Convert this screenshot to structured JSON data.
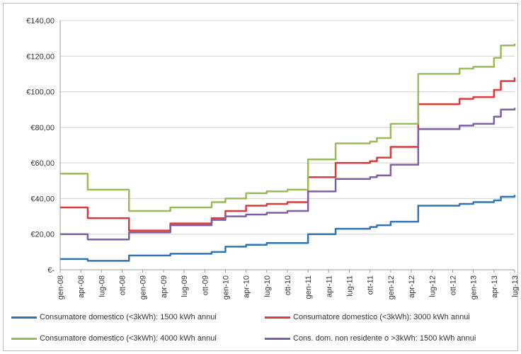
{
  "chart_data": {
    "type": "line",
    "title": "",
    "xlabel": "",
    "ylabel": "",
    "ylim": [
      0,
      140
    ],
    "y_ticks": [
      0,
      20,
      40,
      60,
      80,
      100,
      120,
      140
    ],
    "y_tick_labels": [
      "€-",
      "€20,00",
      "€40,00",
      "€60,00",
      "€80,00",
      "€100,00",
      "€120,00",
      "€140,00"
    ],
    "grid": true,
    "legend_position": "bottom",
    "x_tick_labels": [
      "gen-08",
      "apr-08",
      "lug-08",
      "ott-08",
      "gen-09",
      "apr-09",
      "lug-09",
      "ott-09",
      "gen-10",
      "apr-10",
      "lug-10",
      "ott-10",
      "gen-11",
      "apr-11",
      "lug-11",
      "ott-11",
      "gen-12",
      "apr-12",
      "lug-12",
      "ott-12",
      "gen-13",
      "apr-13",
      "lug-13"
    ],
    "x": [
      0,
      3,
      4,
      6,
      9,
      10,
      12,
      15,
      16,
      18,
      21,
      22,
      24,
      27,
      28,
      30,
      33,
      34,
      36,
      39,
      40,
      42,
      45,
      46,
      48,
      51,
      52,
      54,
      57,
      58,
      60,
      63,
      64,
      66
    ],
    "series": [
      {
        "name": "Consumatore domestico (<3kWh): 1500 kWh annui",
        "color": "#2e75b6",
        "values": [
          6,
          6,
          5,
          5,
          5,
          8,
          8,
          8,
          9,
          9,
          9,
          10,
          13,
          14,
          14,
          15,
          15,
          15,
          20,
          20,
          23,
          23,
          24,
          25,
          27,
          27,
          36,
          36,
          36,
          37,
          38,
          39,
          41,
          42
        ]
      },
      {
        "name": "Consumatore domestico (<3kWh): 3000 kWh annui",
        "color": "#d93a3a",
        "values": [
          35,
          35,
          29,
          29,
          29,
          22,
          22,
          22,
          26,
          26,
          26,
          29,
          33,
          36,
          36,
          37,
          38,
          38,
          52,
          52,
          60,
          60,
          61,
          63,
          69,
          69,
          93,
          93,
          93,
          96,
          97,
          101,
          106,
          108
        ]
      },
      {
        "name": "Consumatore domestico (<3kWh): 4000 kWh annui",
        "color": "#9bbb59",
        "values": [
          54,
          54,
          45,
          45,
          45,
          33,
          33,
          33,
          35,
          35,
          35,
          38,
          40,
          43,
          43,
          44,
          45,
          45,
          62,
          62,
          71,
          71,
          72,
          74,
          82,
          82,
          110,
          110,
          110,
          113,
          114,
          119,
          126,
          127
        ]
      },
      {
        "name": "Cons. dom. non residente o >3kWh: 1500 kWh annui",
        "color": "#7e60a8",
        "values": [
          20,
          20,
          17,
          17,
          17,
          21,
          21,
          21,
          25,
          25,
          25,
          28,
          30,
          31,
          31,
          32,
          33,
          33,
          44,
          44,
          51,
          51,
          52,
          53,
          59,
          59,
          79,
          79,
          79,
          81,
          82,
          86,
          90,
          91
        ]
      }
    ]
  }
}
